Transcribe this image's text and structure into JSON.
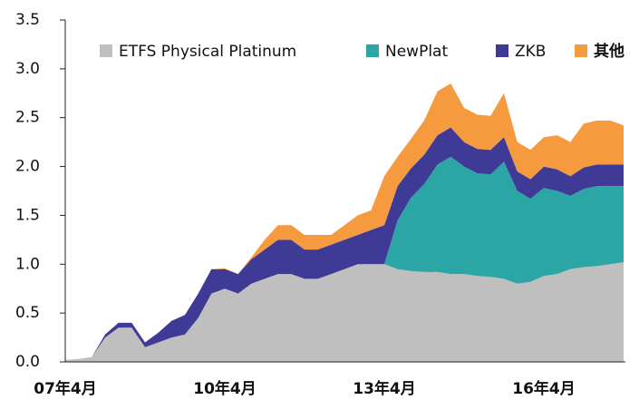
{
  "chart_data": {
    "type": "stacked_area",
    "categories": [
      "07年4月",
      null,
      null,
      null,
      null,
      null,
      null,
      null,
      null,
      null,
      null,
      null,
      "10年4月",
      null,
      null,
      null,
      null,
      null,
      null,
      null,
      null,
      null,
      null,
      null,
      "13年4月",
      null,
      null,
      null,
      null,
      null,
      null,
      null,
      null,
      null,
      null,
      null,
      "16年4月",
      null,
      null,
      null,
      null,
      null,
      null
    ],
    "series": [
      {
        "name": "ETFS Physical Platinum",
        "color": "#bfbfbf",
        "values": [
          0.02,
          0.03,
          0.05,
          0.25,
          0.35,
          0.35,
          0.15,
          0.2,
          0.25,
          0.28,
          0.45,
          0.7,
          0.75,
          0.7,
          0.8,
          0.85,
          0.9,
          0.9,
          0.85,
          0.85,
          0.9,
          0.95,
          1.0,
          1.0,
          1.0,
          0.95,
          0.93,
          0.92,
          0.92,
          0.9,
          0.9,
          0.88,
          0.87,
          0.85,
          0.8,
          0.82,
          0.88,
          0.9,
          0.95,
          0.97,
          0.98,
          1.0,
          1.02
        ]
      },
      {
        "name": "NewPlat",
        "color": "#2ca5a5",
        "values": [
          0,
          0,
          0,
          0,
          0,
          0,
          0,
          0,
          0,
          0,
          0,
          0,
          0,
          0,
          0,
          0,
          0,
          0,
          0,
          0,
          0,
          0,
          0,
          0,
          0,
          0.5,
          0.75,
          0.9,
          1.1,
          1.2,
          1.1,
          1.05,
          1.05,
          1.2,
          0.95,
          0.85,
          0.9,
          0.85,
          0.75,
          0.8,
          0.82,
          0.8,
          0.78
        ]
      },
      {
        "name": "ZKB",
        "color": "#3e3a96",
        "values": [
          0,
          0,
          0,
          0.03,
          0.05,
          0.05,
          0.05,
          0.1,
          0.17,
          0.2,
          0.25,
          0.25,
          0.2,
          0.2,
          0.25,
          0.3,
          0.35,
          0.35,
          0.3,
          0.3,
          0.3,
          0.3,
          0.3,
          0.35,
          0.4,
          0.35,
          0.3,
          0.3,
          0.3,
          0.3,
          0.25,
          0.25,
          0.25,
          0.25,
          0.2,
          0.2,
          0.22,
          0.22,
          0.2,
          0.22,
          0.22,
          0.22,
          0.22
        ]
      },
      {
        "name": "其他",
        "color": "#f59a3f",
        "values": [
          0,
          0,
          0,
          0,
          0,
          0,
          0,
          0,
          0,
          0,
          0,
          0,
          0.01,
          0,
          0.02,
          0.1,
          0.15,
          0.15,
          0.15,
          0.15,
          0.1,
          0.15,
          0.2,
          0.2,
          0.5,
          0.3,
          0.3,
          0.35,
          0.45,
          0.45,
          0.35,
          0.35,
          0.35,
          0.45,
          0.3,
          0.3,
          0.3,
          0.35,
          0.35,
          0.45,
          0.45,
          0.45,
          0.4
        ]
      }
    ],
    "ylim": [
      0,
      3.5
    ],
    "yticks": [
      {
        "value": 0,
        "label": "0.0"
      },
      0.5,
      {
        "value": 1,
        "label": "1.0"
      },
      1.5,
      {
        "value": 2,
        "label": "2.0"
      },
      2.5,
      {
        "value": 3,
        "label": "3.0"
      },
      3.5
    ],
    "legend": "top"
  }
}
